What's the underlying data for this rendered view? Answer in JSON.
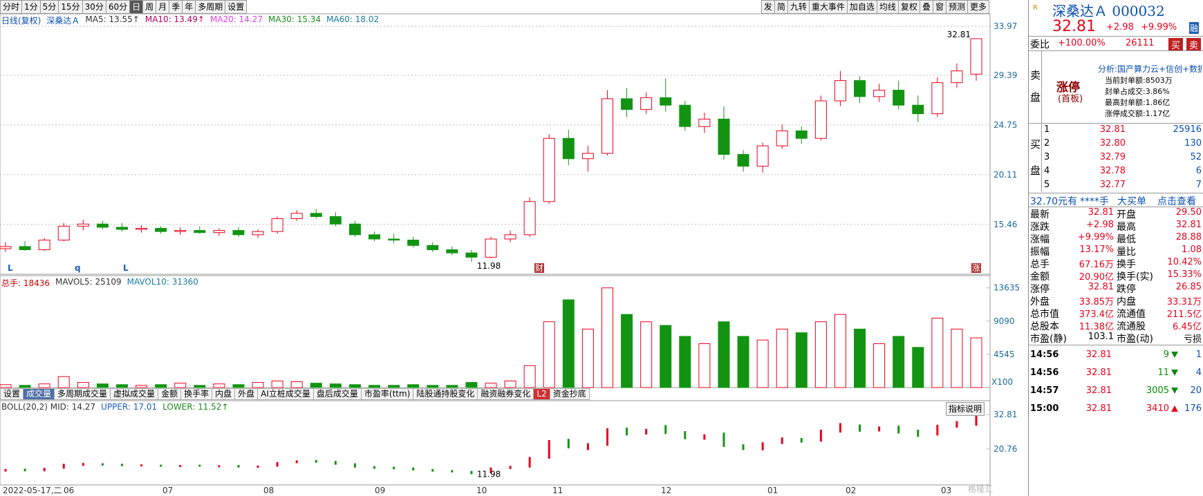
{
  "toolbar": {
    "periods": [
      "分时",
      "1分",
      "5分",
      "15分",
      "30分",
      "60分",
      "日",
      "周",
      "月",
      "季",
      "年",
      "多周期",
      "设置"
    ],
    "actions": [
      "发",
      "简",
      "九转",
      "重大事件",
      "加自选",
      "均线",
      "复权",
      "叠",
      "窗",
      "预测",
      "更多"
    ]
  },
  "chart_data": [
    {
      "type": "candlestick",
      "legend": {
        "mode": "日线(复权)",
        "stock": "深桑达Ａ",
        "ma": [
          {
            "label": "MA5: 13.55↑",
            "color": "#333333"
          },
          {
            "label": "MA10: 13.49↑",
            "color": "#b0006a"
          },
          {
            "label": "MA20: 14.27",
            "color": "#e040e0"
          },
          {
            "label": "MA30: 15.34",
            "color": "#1a8a1a"
          },
          {
            "label": "MA60: 18.02",
            "color": "#1a7aa0"
          }
        ]
      },
      "open": [
        13.2,
        13.4,
        13.1,
        14.0,
        15.3,
        15.5,
        15.2,
        15.0,
        15.1,
        14.8,
        14.9,
        14.7,
        14.9,
        14.5,
        14.8,
        16.0,
        16.5,
        16.2,
        15.5,
        14.5,
        14.1,
        14.0,
        13.5,
        13.1,
        12.8,
        12.4,
        14.1,
        14.5,
        17.6,
        23.5,
        21.6,
        22.1,
        27.2,
        26.2,
        27.3,
        26.6,
        24.6,
        25.3,
        22.0,
        20.9,
        22.8,
        24.2,
        23.5,
        27.0,
        28.9,
        27.4,
        28.0,
        26.6,
        25.8,
        28.7,
        29.5
      ],
      "high": [
        13.8,
        13.9,
        14.2,
        15.6,
        15.9,
        15.8,
        15.6,
        15.4,
        15.3,
        15.2,
        15.3,
        15.1,
        15.2,
        15.0,
        16.2,
        16.8,
        16.9,
        16.6,
        15.8,
        14.8,
        14.6,
        14.3,
        13.8,
        13.4,
        13.1,
        14.3,
        14.9,
        18.0,
        23.9,
        24.3,
        22.8,
        28.0,
        28.2,
        27.8,
        29.1,
        27.0,
        25.9,
        26.5,
        22.4,
        23.1,
        24.8,
        24.6,
        27.5,
        29.8,
        29.3,
        28.6,
        28.9,
        27.5,
        29.2,
        30.5,
        32.81
      ],
      "low": [
        12.9,
        13.0,
        13.0,
        13.9,
        14.9,
        15.0,
        14.8,
        14.7,
        14.6,
        14.5,
        14.6,
        14.4,
        14.3,
        14.2,
        14.6,
        15.8,
        16.0,
        15.3,
        14.3,
        13.9,
        13.7,
        13.3,
        12.9,
        12.6,
        11.98,
        12.3,
        13.8,
        14.3,
        17.4,
        21.0,
        20.4,
        21.9,
        25.5,
        25.8,
        26.0,
        24.2,
        24.0,
        21.5,
        20.4,
        20.3,
        22.5,
        23.0,
        23.3,
        26.5,
        26.8,
        26.9,
        26.2,
        25.0,
        25.5,
        28.2,
        28.88
      ],
      "close": [
        13.4,
        13.1,
        14.0,
        15.3,
        15.5,
        15.2,
        15.0,
        15.1,
        14.8,
        14.9,
        14.7,
        14.9,
        14.5,
        14.8,
        16.0,
        16.5,
        16.2,
        15.5,
        14.5,
        14.1,
        14.0,
        13.5,
        13.1,
        12.8,
        12.4,
        14.1,
        14.5,
        17.6,
        23.5,
        21.6,
        22.1,
        27.2,
        26.2,
        27.3,
        26.6,
        24.6,
        25.3,
        22.0,
        20.9,
        22.8,
        24.2,
        23.5,
        27.0,
        28.9,
        27.4,
        28.0,
        26.6,
        25.8,
        28.7,
        29.8,
        32.81
      ],
      "up_color": "#e8001c",
      "down_color": "#129412",
      "ylim": [
        10.81,
        35.13
      ],
      "yticks": [
        33.97,
        29.39,
        24.75,
        20.11,
        15.46
      ],
      "grid": true,
      "high_label": "32.81",
      "low_label": "11.98",
      "markers": [
        "L",
        "q",
        "L"
      ],
      "badges": [
        "财",
        "涨"
      ]
    },
    {
      "type": "bar",
      "legend": [
        "总手: 18436",
        "MAVOL5: 25109",
        "MAVOL10: 31360"
      ],
      "values": [
        400,
        300,
        500,
        1500,
        700,
        500,
        400,
        300,
        400,
        600,
        300,
        500,
        400,
        700,
        900,
        800,
        600,
        500,
        400,
        300,
        300,
        400,
        300,
        300,
        700,
        600,
        900,
        3000,
        9000,
        12000,
        8000,
        13635,
        10000,
        9000,
        8500,
        7000,
        6000,
        9000,
        7000,
        6500,
        8000,
        7500,
        9000,
        10000,
        8000,
        6000,
        7000,
        5500,
        9500,
        8000,
        6800
      ],
      "ylim": [
        0,
        15310
      ],
      "yticks": [
        13635,
        9090,
        4545
      ],
      "unit_label": "X100"
    },
    {
      "type": "boll",
      "legend": [
        "BOLL(20,2) MID: 14.27",
        "UPPER: 17.01",
        "LOWER: 11.52↑"
      ],
      "help": "指标说明",
      "ylim": [
        8.23,
        37.63
      ],
      "yticks": [
        32.81,
        20.76
      ],
      "high_label": "32.81",
      "low_label": "11.98"
    }
  ],
  "date_axis": {
    "labels": [
      "2022-05-17,二",
      "06",
      "07",
      "08",
      "09",
      "10",
      "11",
      "12",
      "01",
      "02",
      "03"
    ]
  },
  "tabs": [
    "设置",
    "成交量",
    "多周期成交量",
    "虚拟成交量",
    "金额",
    "换手率",
    "内盘",
    "外盘",
    "AI立桩成交量",
    "盘后成交量",
    "市盈率(ttm)",
    "陆股通持股变化",
    "融资融券变化",
    "L2",
    "资金抄底"
  ],
  "quote": {
    "flag": "R",
    "title": "深桑达Ａ 000032",
    "price": "32.81",
    "change": "+2.98",
    "pct": "+9.99%",
    "badge": "融",
    "weibi": {
      "label": "委比",
      "ratio": "+100.00%",
      "diff": "26111",
      "buy": "买",
      "sell": "卖"
    },
    "sell_label": [
      "卖",
      "盘"
    ],
    "limit": {
      "title": "涨停",
      "sub": "(首板)",
      "analysis": "分析:国产算力云+信创+数据中",
      "lines": [
        "当前封单额:8503万",
        "封单占成交:3.86%",
        "最高封单额:1.86亿",
        "涨停成交额:1.17亿"
      ]
    },
    "buy_label": [
      "买",
      "盘"
    ],
    "bids": [
      {
        "level": "1",
        "price": "32.81",
        "vol": "25916"
      },
      {
        "level": "2",
        "price": "32.80",
        "vol": "130"
      },
      {
        "level": "3",
        "price": "32.79",
        "vol": "52"
      },
      {
        "level": "4",
        "price": "32.78",
        "vol": "6"
      },
      {
        "level": "5",
        "price": "32.77",
        "vol": "7"
      }
    ],
    "bigorder": [
      "32.70元有",
      "****手",
      "大买单",
      "点击查看"
    ],
    "stats": [
      [
        "最新",
        "32.81",
        "开盘",
        "29.50"
      ],
      [
        "涨跌",
        "+2.98",
        "最高",
        "32.81"
      ],
      [
        "涨幅",
        "+9.99%",
        "最低",
        "28.88"
      ],
      [
        "振幅",
        "13.17%",
        "量比",
        "1.08"
      ],
      [
        "总手",
        "67.16万",
        "换手",
        "10.42%"
      ],
      [
        "金额",
        "20.90亿",
        "换手(实)",
        "15.33%"
      ],
      [
        "涨停",
        "32.81",
        "跌停",
        "26.85"
      ],
      [
        "外盘",
        "33.85万",
        "内盘",
        "33.31万"
      ],
      [
        "总市值",
        "373.4亿",
        "流通值",
        "211.5亿"
      ],
      [
        "总股本",
        "11.38亿",
        "流通股",
        "6.45亿"
      ],
      [
        "市盈(静)",
        "103.1",
        "市盈(动)",
        "亏损"
      ]
    ],
    "ticks": [
      {
        "time": "14:56",
        "price": "32.81",
        "vol": "9",
        "arrow": "down",
        "count": "1"
      },
      {
        "time": "14:56",
        "price": "32.81",
        "vol": "11",
        "arrow": "down",
        "count": "4"
      },
      {
        "time": "14:57",
        "price": "32.81",
        "vol": "3005",
        "arrow": "down",
        "count": "20"
      },
      {
        "time": "15:00",
        "price": "32.81",
        "vol": "3410",
        "arrow": "up",
        "count": "176"
      }
    ]
  },
  "watermark": "格隆汇"
}
